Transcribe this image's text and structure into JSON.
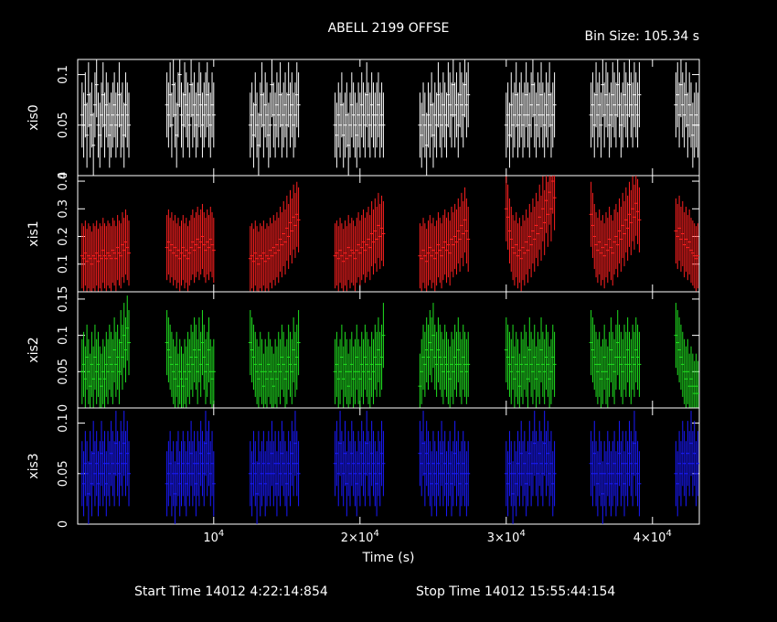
{
  "title": "ABELL 2199 OFFSE",
  "bin_size_label": "Bin Size: 105.34 s",
  "xlabel": "Time (s)",
  "start_time_label": "Start Time 14012  4:22:14:854",
  "stop_time_label": "Stop Time 14012 15:55:44:154",
  "x_ticks": [
    {
      "value": 10000,
      "label": "10^4"
    },
    {
      "value": 20000,
      "label": "2×10^4"
    },
    {
      "value": 30000,
      "label": "3×10^4"
    },
    {
      "value": 40000,
      "label": "4×10^4"
    }
  ],
  "colors": {
    "background": "#000000",
    "axes": "#ffffff",
    "xis0": "#ffffff",
    "xis1": "#ff2020",
    "xis2": "#20e020",
    "xis3": "#1a1aff"
  },
  "chart_data": {
    "type": "scatter",
    "title": "ABELL 2199 OFFSE",
    "xlabel": "Time (s)",
    "xlim": [
      700,
      43200
    ],
    "grid": false,
    "segments": [
      [
        1000,
        4200
      ],
      [
        6800,
        10000
      ],
      [
        12500,
        15800
      ],
      [
        18300,
        21600
      ],
      [
        24100,
        27400
      ],
      [
        30000,
        33300
      ],
      [
        35800,
        39100
      ],
      [
        41600,
        43100
      ]
    ],
    "series": [
      {
        "name": "xis0",
        "color": "#ffffff",
        "ylim": [
          0,
          0.115
        ],
        "y_ticks": [
          {
            "value": 0,
            "label": "0"
          },
          {
            "value": 0.05,
            "label": "0.05"
          },
          {
            "value": 0.1,
            "label": "0.1"
          }
        ],
        "segment_values": [
          [
            0.06,
            0.05,
            0.07,
            0.04,
            0.08,
            0.05,
            0.06,
            0.03,
            0.07,
            0.09,
            0.05,
            0.04,
            0.06,
            0.08,
            0.05,
            0.07,
            0.06,
            0.04,
            0.05,
            0.06,
            0.07,
            0.05,
            0.06,
            0.08,
            0.05,
            0.06,
            0.04,
            0.07,
            0.06,
            0.05
          ],
          [
            0.07,
            0.06,
            0.08,
            0.05,
            0.09,
            0.06,
            0.04,
            0.07,
            0.1,
            0.06,
            0.05,
            0.08,
            0.07,
            0.06,
            0.05,
            0.09,
            0.06,
            0.07,
            0.05,
            0.06,
            0.08,
            0.07,
            0.05,
            0.06,
            0.07,
            0.08,
            0.06,
            0.05,
            0.07,
            0.06
          ],
          [
            0.05,
            0.06,
            0.04,
            0.07,
            0.05,
            0.03,
            0.06,
            0.08,
            0.05,
            0.07,
            0.06,
            0.04,
            0.05,
            0.09,
            0.06,
            0.05,
            0.07,
            0.06,
            0.08,
            0.05,
            0.06,
            0.07,
            0.05,
            0.08,
            0.06,
            0.07,
            0.05,
            0.06,
            0.08,
            0.07
          ],
          [
            0.05,
            0.04,
            0.06,
            0.05,
            0.07,
            0.04,
            0.05,
            0.06,
            0.03,
            0.05,
            0.07,
            0.06,
            0.05,
            0.04,
            0.06,
            0.05,
            0.07,
            0.06,
            0.05,
            0.08,
            0.06,
            0.05,
            0.07,
            0.06,
            0.05,
            0.06,
            0.07,
            0.05,
            0.06,
            0.05
          ],
          [
            0.05,
            0.04,
            0.06,
            0.05,
            0.03,
            0.06,
            0.05,
            0.07,
            0.04,
            0.06,
            0.05,
            0.08,
            0.06,
            0.05,
            0.07,
            0.06,
            0.05,
            0.08,
            0.07,
            0.06,
            0.09,
            0.06,
            0.07,
            0.05,
            0.08,
            0.07,
            0.06,
            0.09,
            0.07,
            0.08
          ],
          [
            0.05,
            0.06,
            0.04,
            0.07,
            0.05,
            0.06,
            0.08,
            0.05,
            0.06,
            0.07,
            0.05,
            0.06,
            0.08,
            0.06,
            0.05,
            0.07,
            0.09,
            0.06,
            0.05,
            0.07,
            0.06,
            0.08,
            0.06,
            0.05,
            0.07,
            0.06,
            0.08,
            0.05,
            0.06,
            0.07
          ],
          [
            0.06,
            0.07,
            0.05,
            0.08,
            0.06,
            0.07,
            0.05,
            0.09,
            0.06,
            0.08,
            0.07,
            0.05,
            0.06,
            0.08,
            0.07,
            0.06,
            0.09,
            0.07,
            0.05,
            0.06,
            0.08,
            0.07,
            0.06,
            0.09,
            0.07,
            0.06,
            0.08,
            0.07,
            0.06,
            0.08
          ],
          [
            0.07,
            0.08,
            0.06,
            0.09,
            0.07,
            0.06,
            0.08,
            0.05,
            0.07,
            0.06,
            0.04,
            0.05,
            0.06,
            0.05
          ]
        ]
      },
      {
        "name": "xis1",
        "color": "#ff2020",
        "ylim": [
          0.0,
          0.42
        ],
        "y_ticks": [
          {
            "value": 0.1,
            "label": "0.1"
          },
          {
            "value": 0.2,
            "label": "0.2"
          },
          {
            "value": 0.3,
            "label": "0.3"
          },
          {
            "value": 0.4,
            "label": "0.4"
          }
        ],
        "segment_values": [
          [
            0.13,
            0.12,
            0.14,
            0.11,
            0.13,
            0.12,
            0.1,
            0.13,
            0.12,
            0.14,
            0.11,
            0.13,
            0.12,
            0.15,
            0.13,
            0.12,
            0.14,
            0.13,
            0.12,
            0.15,
            0.14,
            0.12,
            0.16,
            0.14,
            0.13,
            0.17,
            0.15,
            0.18,
            0.16,
            0.14
          ],
          [
            0.16,
            0.18,
            0.15,
            0.17,
            0.14,
            0.16,
            0.13,
            0.15,
            0.12,
            0.14,
            0.16,
            0.13,
            0.15,
            0.12,
            0.14,
            0.16,
            0.18,
            0.15,
            0.17,
            0.19,
            0.16,
            0.18,
            0.2,
            0.17,
            0.15,
            0.18,
            0.16,
            0.19,
            0.17,
            0.15
          ],
          [
            0.12,
            0.13,
            0.11,
            0.14,
            0.12,
            0.1,
            0.13,
            0.12,
            0.14,
            0.11,
            0.13,
            0.12,
            0.15,
            0.13,
            0.16,
            0.14,
            0.17,
            0.15,
            0.19,
            0.17,
            0.21,
            0.18,
            0.23,
            0.2,
            0.25,
            0.22,
            0.27,
            0.24,
            0.28,
            0.26
          ],
          [
            0.13,
            0.14,
            0.12,
            0.15,
            0.13,
            0.11,
            0.14,
            0.12,
            0.16,
            0.13,
            0.15,
            0.14,
            0.12,
            0.15,
            0.17,
            0.14,
            0.16,
            0.18,
            0.15,
            0.17,
            0.19,
            0.16,
            0.21,
            0.18,
            0.22,
            0.19,
            0.24,
            0.2,
            0.23,
            0.21
          ],
          [
            0.13,
            0.12,
            0.15,
            0.13,
            0.11,
            0.14,
            0.16,
            0.13,
            0.15,
            0.12,
            0.14,
            0.17,
            0.15,
            0.13,
            0.16,
            0.18,
            0.15,
            0.17,
            0.14,
            0.19,
            0.17,
            0.2,
            0.18,
            0.22,
            0.19,
            0.24,
            0.21,
            0.26,
            0.22,
            0.19
          ],
          [
            0.3,
            0.27,
            0.22,
            0.19,
            0.16,
            0.14,
            0.17,
            0.13,
            0.15,
            0.12,
            0.16,
            0.14,
            0.18,
            0.15,
            0.2,
            0.17,
            0.22,
            0.19,
            0.24,
            0.21,
            0.27,
            0.23,
            0.3,
            0.25,
            0.33,
            0.28,
            0.36,
            0.3,
            0.4,
            0.34
          ],
          [
            0.28,
            0.24,
            0.2,
            0.17,
            0.15,
            0.18,
            0.14,
            0.16,
            0.13,
            0.17,
            0.15,
            0.19,
            0.16,
            0.14,
            0.18,
            0.2,
            0.17,
            0.22,
            0.19,
            0.24,
            0.21,
            0.26,
            0.23,
            0.28,
            0.25,
            0.3,
            0.27,
            0.32,
            0.29,
            0.26
          ],
          [
            0.22,
            0.2,
            0.23,
            0.19,
            0.21,
            0.17,
            0.19,
            0.16,
            0.18,
            0.15,
            0.14,
            0.13,
            0.12,
            0.13
          ]
        ]
      },
      {
        "name": "xis2",
        "color": "#20e020",
        "ylim": [
          0,
          0.16
        ],
        "y_ticks": [
          {
            "value": 0,
            "label": "0"
          },
          {
            "value": 0.05,
            "label": "0.05"
          },
          {
            "value": 0.1,
            "label": "0.1"
          },
          {
            "value": 0.15,
            "label": "0.15"
          }
        ],
        "segment_values": [
          [
            0.05,
            0.06,
            0.04,
            0.07,
            0.05,
            0.03,
            0.06,
            0.04,
            0.07,
            0.05,
            0.06,
            0.04,
            0.03,
            0.05,
            0.04,
            0.06,
            0.05,
            0.07,
            0.06,
            0.05,
            0.08,
            0.06,
            0.07,
            0.05,
            0.09,
            0.07,
            0.1,
            0.08,
            0.11,
            0.09
          ],
          [
            0.09,
            0.08,
            0.07,
            0.06,
            0.05,
            0.04,
            0.06,
            0.03,
            0.05,
            0.04,
            0.03,
            0.05,
            0.04,
            0.06,
            0.05,
            0.07,
            0.06,
            0.08,
            0.07,
            0.05,
            0.08,
            0.06,
            0.09,
            0.07,
            0.05,
            0.06,
            0.08,
            0.05,
            0.04,
            0.05
          ],
          [
            0.09,
            0.08,
            0.07,
            0.06,
            0.05,
            0.04,
            0.06,
            0.05,
            0.03,
            0.05,
            0.04,
            0.06,
            0.05,
            0.04,
            0.03,
            0.05,
            0.04,
            0.06,
            0.05,
            0.07,
            0.06,
            0.04,
            0.05,
            0.07,
            0.06,
            0.05,
            0.08,
            0.06,
            0.07,
            0.09
          ],
          [
            0.05,
            0.06,
            0.04,
            0.05,
            0.07,
            0.04,
            0.06,
            0.05,
            0.03,
            0.05,
            0.06,
            0.04,
            0.05,
            0.07,
            0.05,
            0.04,
            0.06,
            0.05,
            0.07,
            0.06,
            0.05,
            0.04,
            0.06,
            0.05,
            0.07,
            0.06,
            0.08,
            0.06,
            0.07,
            0.1
          ],
          [
            0.03,
            0.05,
            0.07,
            0.06,
            0.08,
            0.07,
            0.09,
            0.08,
            0.1,
            0.07,
            0.06,
            0.08,
            0.07,
            0.06,
            0.05,
            0.07,
            0.06,
            0.05,
            0.04,
            0.06,
            0.05,
            0.07,
            0.06,
            0.08,
            0.06,
            0.05,
            0.07,
            0.06,
            0.05,
            0.06
          ],
          [
            0.08,
            0.07,
            0.06,
            0.05,
            0.07,
            0.04,
            0.06,
            0.05,
            0.03,
            0.06,
            0.05,
            0.07,
            0.06,
            0.04,
            0.08,
            0.06,
            0.05,
            0.07,
            0.04,
            0.06,
            0.05,
            0.08,
            0.06,
            0.05,
            0.07,
            0.06,
            0.04,
            0.05,
            0.07,
            0.06
          ],
          [
            0.09,
            0.08,
            0.07,
            0.06,
            0.05,
            0.06,
            0.04,
            0.05,
            0.07,
            0.05,
            0.04,
            0.06,
            0.08,
            0.06,
            0.05,
            0.07,
            0.09,
            0.07,
            0.06,
            0.05,
            0.07,
            0.06,
            0.08,
            0.06,
            0.05,
            0.07,
            0.06,
            0.08,
            0.07,
            0.06
          ],
          [
            0.1,
            0.09,
            0.08,
            0.07,
            0.06,
            0.05,
            0.04,
            0.05,
            0.03,
            0.04,
            0.03,
            0.02,
            0.03,
            0.02
          ]
        ]
      },
      {
        "name": "xis3",
        "color": "#1a1aff",
        "ylim": [
          0,
          0.115
        ],
        "y_ticks": [
          {
            "value": 0,
            "label": "0"
          },
          {
            "value": 0.05,
            "label": "0.05"
          },
          {
            "value": 0.1,
            "label": "0.1"
          }
        ],
        "segment_values": [
          [
            0.05,
            0.04,
            0.06,
            0.05,
            0.03,
            0.06,
            0.04,
            0.07,
            0.05,
            0.06,
            0.04,
            0.05,
            0.07,
            0.05,
            0.06,
            0.04,
            0.06,
            0.05,
            0.07,
            0.06,
            0.05,
            0.08,
            0.06,
            0.05,
            0.07,
            0.06,
            0.08,
            0.06,
            0.07,
            0.05
          ],
          [
            0.04,
            0.05,
            0.06,
            0.04,
            0.05,
            0.03,
            0.05,
            0.06,
            0.04,
            0.05,
            0.06,
            0.05,
            0.04,
            0.06,
            0.05,
            0.07,
            0.05,
            0.06,
            0.04,
            0.06,
            0.05,
            0.07,
            0.06,
            0.05,
            0.08,
            0.06,
            0.07,
            0.05,
            0.06,
            0.04
          ],
          [
            0.05,
            0.04,
            0.06,
            0.05,
            0.03,
            0.06,
            0.04,
            0.05,
            0.06,
            0.04,
            0.05,
            0.06,
            0.05,
            0.07,
            0.05,
            0.06,
            0.04,
            0.06,
            0.05,
            0.07,
            0.06,
            0.05,
            0.04,
            0.06,
            0.05,
            0.07,
            0.06,
            0.08,
            0.06,
            0.05
          ],
          [
            0.06,
            0.07,
            0.05,
            0.08,
            0.06,
            0.05,
            0.07,
            0.04,
            0.06,
            0.05,
            0.07,
            0.06,
            0.05,
            0.04,
            0.06,
            0.05,
            0.07,
            0.06,
            0.05,
            0.08,
            0.06,
            0.05,
            0.07,
            0.06,
            0.05,
            0.04,
            0.06,
            0.05,
            0.07,
            0.06
          ],
          [
            0.07,
            0.06,
            0.08,
            0.05,
            0.07,
            0.06,
            0.05,
            0.04,
            0.06,
            0.05,
            0.04,
            0.06,
            0.05,
            0.07,
            0.05,
            0.06,
            0.04,
            0.05,
            0.06,
            0.04,
            0.05,
            0.07,
            0.05,
            0.06,
            0.04,
            0.05,
            0.06,
            0.05,
            0.04,
            0.05
          ],
          [
            0.05,
            0.04,
            0.06,
            0.05,
            0.03,
            0.05,
            0.04,
            0.06,
            0.05,
            0.07,
            0.05,
            0.06,
            0.04,
            0.05,
            0.07,
            0.05,
            0.06,
            0.08,
            0.06,
            0.05,
            0.07,
            0.06,
            0.05,
            0.08,
            0.06,
            0.07,
            0.05,
            0.06,
            0.04,
            0.05
          ],
          [
            0.06,
            0.05,
            0.07,
            0.05,
            0.04,
            0.06,
            0.05,
            0.03,
            0.05,
            0.04,
            0.06,
            0.05,
            0.04,
            0.05,
            0.06,
            0.04,
            0.05,
            0.07,
            0.05,
            0.06,
            0.04,
            0.06,
            0.05,
            0.07,
            0.06,
            0.05,
            0.08,
            0.06,
            0.05,
            0.04
          ],
          [
            0.05,
            0.04,
            0.06,
            0.05,
            0.07,
            0.06,
            0.05,
            0.07,
            0.06,
            0.08,
            0.06,
            0.07,
            0.05,
            0.06
          ]
        ]
      }
    ]
  }
}
